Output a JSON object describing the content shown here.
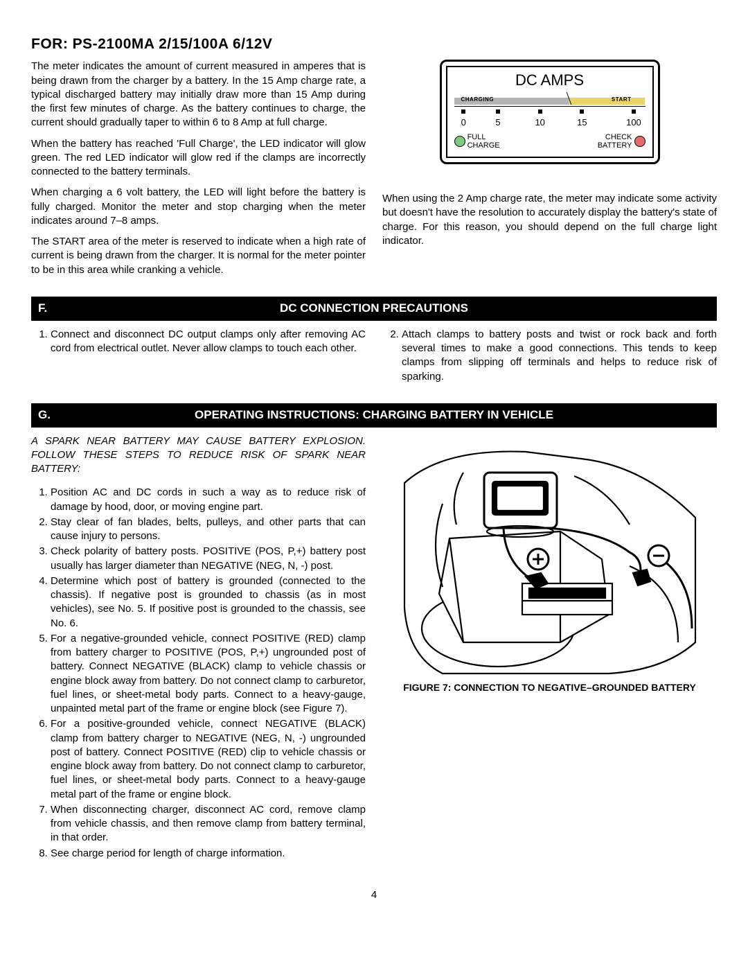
{
  "title": "FOR: PS-2100MA   2/15/100A   6/12V",
  "intro": {
    "p1": "The meter indicates the amount of current measured in amperes that is being drawn from the charger by a battery. In the 15 Amp charge rate, a typical discharged battery may initially draw more than 15 Amp during the first few minutes of charge. As the battery continues to charge, the current should gradually taper to within 6 to 8 Amp at full charge.",
    "p2": "When the battery has reached 'Full Charge', the LED indicator will glow green. The red LED indicator will glow red if the clamps are incorrectly connected to the battery terminals.",
    "p3": "When charging a 6 volt battery, the LED will light before the battery is fully charged. Monitor the meter and stop charging when the meter indicates around 7–8 amps.",
    "p4": "The START area of the meter is reserved to indicate when a high rate of current is being drawn from the charger. It is normal for the meter pointer to be in this area while cranking a vehicle.",
    "p5": "When using the 2 Amp charge rate, the meter may indicate some activity but doesn't have the resolution to accurately display the battery's state of charge. For this reason, you should depend on the full charge light indicator."
  },
  "meter": {
    "title": "DC AMPS",
    "charging_label": "CHARGING",
    "start_label": "START",
    "full_charge_label": "FULL\nCHARGE",
    "check_battery_label": "CHECK\nBATTERY",
    "scale": [
      {
        "value": "0",
        "pos_pct": 5
      },
      {
        "value": "5",
        "pos_pct": 23
      },
      {
        "value": "10",
        "pos_pct": 45
      },
      {
        "value": "15",
        "pos_pct": 67
      },
      {
        "value": "100",
        "pos_pct": 94
      }
    ],
    "charging_width_pct": 60,
    "start_width_pct": 40,
    "colors": {
      "charging_bg": "#b5b5b5",
      "start_bg": "#ebd36a",
      "led_green": "#7ec97e",
      "led_red": "#e36b6b"
    }
  },
  "sectionF": {
    "letter": "F.",
    "title": "DC CONNECTION PRECAUTIONS",
    "items": [
      "Connect and disconnect DC output clamps only after removing AC cord from electrical outlet. Never allow clamps to touch each other.",
      "Attach clamps to battery posts and twist or rock back and forth several times to make a good connections. This tends to keep clamps from slipping off terminals and helps to reduce risk of sparking."
    ]
  },
  "sectionG": {
    "letter": "G.",
    "title": "OPERATING INSTRUCTIONS: CHARGING BATTERY IN VEHICLE",
    "warning": "A SPARK NEAR BATTERY MAY CAUSE BATTERY EXPLOSION. FOLLOW THESE STEPS TO REDUCE RISK OF SPARK NEAR BATTERY:",
    "items": [
      "Position AC and DC cords in such a way as to reduce risk of damage by hood, door, or moving engine part.",
      "Stay clear of fan blades, belts, pulleys, and other parts that can cause injury to persons.",
      "Check polarity of battery posts. POSITIVE (POS, P,+) battery post usually has larger diameter than NEGATIVE (NEG, N, -) post.",
      "Determine which post of battery is grounded (connected to the chassis). If negative post is grounded to chassis (as in most vehicles), see No. 5. If positive post is grounded to the chassis, see No. 6.",
      "For a negative-grounded vehicle, connect POSITIVE (RED) clamp from battery charger to POSITIVE (POS, P,+) ungrounded post of battery. Connect NEGATIVE (BLACK) clamp to vehicle chassis or engine block away from battery. Do not connect clamp to carburetor, fuel lines, or sheet-metal body parts. Connect to a heavy-gauge, unpainted metal part of the frame or engine block (see Figure 7).",
      "For a positive-grounded vehicle, connect NEGATIVE (BLACK) clamp from battery charger to NEGATIVE (NEG, N, -) ungrounded post of battery. Connect POSITIVE (RED) clip to vehicle chassis or engine block away from battery. Do not connect clamp to carburetor, fuel lines, or sheet-metal body parts. Connect to a heavy-gauge metal part of the frame or engine block.",
      "When disconnecting charger, disconnect AC cord, remove clamp from vehicle chassis, and then remove clamp from battery terminal, in that order.",
      "See charge period for length of charge information."
    ],
    "figure_caption": "FIGURE 7: CONNECTION TO NEGATIVE–GROUNDED BATTERY"
  },
  "page_number": "4"
}
